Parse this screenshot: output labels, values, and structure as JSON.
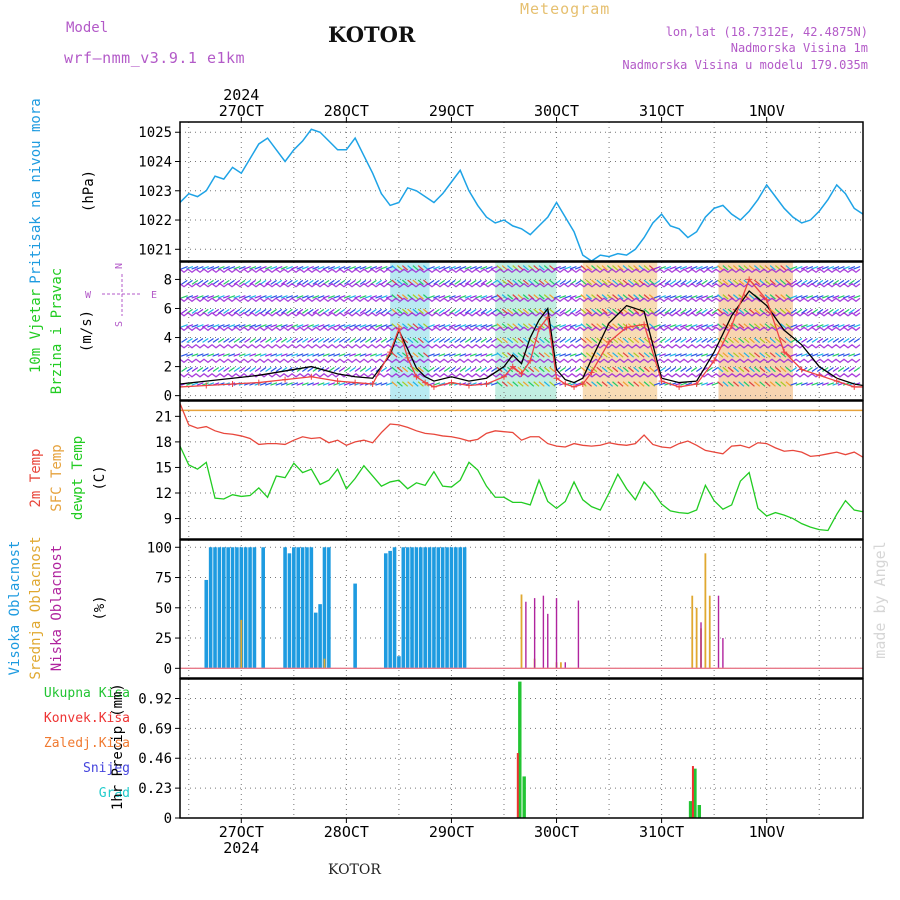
{
  "header": {
    "model_label": "Model",
    "model_name": "wrf–nmm_v3.9.1  e1km",
    "station": "KOTOR",
    "product": "Meteogram",
    "coords": "lon,lat (18.7312E, 42.4875N)",
    "elevation": "Nadmorska Visina 1m",
    "model_elevation": "Nadmorska Visina u modelu 179.035m",
    "year": "2024",
    "footer_station": "KOTOR",
    "watermark": "made by Angel"
  },
  "colors": {
    "pressure": "#1ea3e6",
    "temp2m": "#e8473c",
    "sfc_temp": "#e6a23c",
    "dewpt": "#22cc22",
    "high_cloud": "#1e9be0",
    "mid_cloud": "#e0a830",
    "low_cloud": "#b0249e",
    "total_precip": "#22c433",
    "conv_precip": "#ee3333",
    "frozen": "#f07a30",
    "snow": "#4444dd",
    "graupel": "#22cccc",
    "wind_speed": "#000000",
    "wind_gust": "#ee4444",
    "isotach": "#9b1fd6",
    "axis_title": "#1e9be0",
    "header_purple": "#b35ac8",
    "header_gold": "#e6c070"
  },
  "chart_data": {
    "type": "line",
    "x_axis": {
      "dates": [
        "27OCT",
        "28OCT",
        "29OCT",
        "30OCT",
        "31OCT",
        "1NOV"
      ],
      "year": "2024",
      "range_hours": [
        -14,
        142
      ]
    },
    "panels": [
      {
        "id": "pressure",
        "ylabel": "Pritisak na nivou mora",
        "unit": "(hPa)",
        "yticks": [
          1021,
          1022,
          1023,
          1024,
          1025
        ],
        "ylim": [
          1020.6,
          1025.35
        ],
        "series": [
          {
            "name": "pressure",
            "x": [
              -14,
              -12,
              -10,
              -8,
              -6,
              -4,
              -2,
              0,
              2,
              4,
              6,
              8,
              10,
              12,
              14,
              16,
              18,
              20,
              22,
              24,
              26,
              28,
              30,
              32,
              34,
              36,
              38,
              40,
              42,
              44,
              46,
              48,
              50,
              52,
              54,
              56,
              58,
              60,
              62,
              64,
              66,
              68,
              70,
              72,
              74,
              76,
              78,
              80,
              82,
              84,
              86,
              88,
              90,
              92,
              94,
              96,
              98,
              100,
              102,
              104,
              106,
              108,
              110,
              112,
              114,
              116,
              118,
              120,
              122,
              124,
              126,
              128,
              130,
              132,
              134,
              136,
              138,
              140,
              142
            ],
            "y": [
              1022.6,
              1022.9,
              1022.8,
              1023.0,
              1023.5,
              1023.4,
              1023.8,
              1023.6,
              1024.1,
              1024.6,
              1024.8,
              1024.4,
              1024.0,
              1024.4,
              1024.7,
              1025.1,
              1025.0,
              1024.7,
              1024.4,
              1024.4,
              1024.8,
              1024.2,
              1023.6,
              1022.9,
              1022.5,
              1022.6,
              1023.1,
              1023.0,
              1022.8,
              1022.6,
              1022.9,
              1023.3,
              1023.7,
              1023.0,
              1022.5,
              1022.1,
              1021.9,
              1022.0,
              1021.8,
              1021.7,
              1021.5,
              1021.8,
              1022.1,
              1022.6,
              1022.1,
              1021.6,
              1020.8,
              1020.6,
              1020.8,
              1020.75,
              1020.85,
              1020.8,
              1021.0,
              1021.4,
              1021.9,
              1022.2,
              1021.8,
              1021.7,
              1021.4,
              1021.6,
              1022.1,
              1022.4,
              1022.5,
              1022.2,
              1022.0,
              1022.3,
              1022.7,
              1023.2,
              1022.8,
              1022.4,
              1022.1,
              1021.9,
              1022.0,
              1022.3,
              1022.7,
              1023.2,
              1022.9,
              1022.4,
              1022.2
            ]
          }
        ]
      },
      {
        "id": "wind",
        "ylabel": "10m Vjetar Brzina i Pravac",
        "unit": "(m/s)",
        "compass": [
          "N",
          "W",
          "E",
          "S"
        ],
        "yticks": [
          0,
          2,
          4,
          6,
          8
        ],
        "ylim": [
          -0.3,
          9.2
        ],
        "isotach_levels": [
          1.4,
          2.4,
          3.4,
          4.6,
          5.6,
          6.6,
          7.6,
          8.6
        ],
        "series": [
          {
            "name": "wind_speed",
            "x": [
              -14,
              -8,
              -2,
              4,
              10,
              16,
              22,
              26,
              30,
              34,
              36,
              38,
              40,
              42,
              44,
              48,
              52,
              56,
              60,
              62,
              64,
              66,
              68,
              70,
              72,
              74,
              76,
              78,
              80,
              84,
              88,
              92,
              96,
              100,
              104,
              108,
              112,
              116,
              120,
              124,
              128,
              132,
              136,
              140,
              142
            ],
            "y": [
              0.8,
              1.0,
              1.2,
              1.4,
              1.7,
              2.0,
              1.5,
              1.3,
              1.2,
              2.8,
              4.5,
              3.2,
              1.9,
              1.3,
              1.0,
              1.3,
              1.0,
              1.2,
              2.0,
              2.8,
              2.2,
              4.0,
              5.2,
              6.0,
              1.8,
              1.1,
              0.9,
              1.2,
              2.5,
              5.0,
              6.2,
              5.8,
              1.2,
              0.9,
              1.0,
              3.0,
              5.5,
              7.2,
              6.2,
              4.5,
              3.5,
              2.0,
              1.2,
              0.8,
              0.7
            ]
          },
          {
            "name": "wind_gust",
            "x": [
              -14,
              -8,
              -2,
              4,
              10,
              16,
              22,
              26,
              30,
              34,
              36,
              38,
              40,
              42,
              44,
              48,
              52,
              56,
              60,
              62,
              64,
              66,
              68,
              70,
              72,
              74,
              76,
              78,
              80,
              84,
              88,
              92,
              96,
              100,
              104,
              108,
              112,
              116,
              120,
              124,
              128,
              132,
              136,
              140,
              142
            ],
            "y": [
              0.6,
              0.7,
              0.8,
              0.9,
              1.1,
              1.3,
              1.0,
              0.9,
              0.8,
              3.0,
              4.6,
              2.6,
              1.3,
              0.9,
              0.6,
              0.9,
              0.7,
              0.8,
              1.3,
              2.0,
              1.5,
              2.4,
              4.6,
              5.4,
              1.2,
              0.8,
              0.6,
              0.8,
              1.6,
              3.7,
              4.7,
              4.9,
              1.0,
              0.6,
              0.8,
              2.4,
              4.8,
              8.0,
              6.6,
              3.0,
              1.8,
              1.4,
              1.0,
              0.6,
              0.6
            ]
          }
        ]
      },
      {
        "id": "temperature",
        "ylabel": [
          "2m Temp",
          "SFC Temp",
          "dewpt Temp"
        ],
        "unit": "(C)",
        "yticks": [
          9,
          12,
          15,
          18,
          21
        ],
        "ylim": [
          6.6,
          22.8
        ],
        "series": [
          {
            "name": "temp2m",
            "x": [
              -14,
              -12,
              -10,
              -8,
              -6,
              -4,
              -2,
              0,
              2,
              4,
              6,
              8,
              10,
              12,
              14,
              16,
              18,
              20,
              22,
              24,
              26,
              28,
              30,
              32,
              34,
              36,
              38,
              40,
              42,
              44,
              46,
              48,
              50,
              52,
              54,
              56,
              58,
              60,
              62,
              64,
              66,
              68,
              70,
              72,
              74,
              76,
              78,
              80,
              82,
              84,
              86,
              88,
              90,
              92,
              94,
              96,
              98,
              100,
              102,
              104,
              106,
              108,
              110,
              112,
              114,
              116,
              118,
              120,
              122,
              124,
              126,
              128,
              130,
              132,
              134,
              136,
              138,
              140,
              142
            ],
            "y": [
              22.5,
              20.0,
              19.6,
              19.8,
              19.3,
              19.0,
              18.9,
              18.7,
              18.4,
              17.7,
              17.8,
              17.8,
              17.7,
              18.2,
              18.6,
              18.4,
              18.5,
              17.9,
              18.2,
              17.6,
              18.0,
              18.2,
              17.9,
              19.1,
              20.1,
              20.0,
              19.7,
              19.3,
              19.0,
              18.9,
              18.7,
              18.6,
              18.4,
              18.1,
              18.3,
              19.0,
              19.3,
              19.2,
              19.1,
              18.2,
              18.6,
              18.6,
              17.8,
              17.5,
              17.4,
              17.8,
              17.6,
              17.5,
              17.6,
              17.9,
              17.7,
              17.6,
              17.8,
              18.8,
              17.7,
              17.4,
              17.3,
              17.8,
              18.1,
              17.6,
              17.0,
              16.8,
              16.6,
              17.5,
              17.6,
              17.3,
              17.9,
              17.8,
              17.3,
              16.9,
              17.0,
              16.8,
              16.3,
              16.4,
              16.6,
              16.8,
              16.5,
              16.8,
              16.2
            ]
          },
          {
            "name": "sfc_temp",
            "x": [
              -14,
              142
            ],
            "y": [
              21.7,
              21.7
            ]
          },
          {
            "name": "dewpt",
            "x": [
              -14,
              -12,
              -10,
              -8,
              -6,
              -4,
              -2,
              0,
              2,
              4,
              6,
              8,
              10,
              12,
              14,
              16,
              18,
              20,
              22,
              24,
              26,
              28,
              30,
              32,
              34,
              36,
              38,
              40,
              42,
              44,
              46,
              48,
              50,
              52,
              54,
              56,
              58,
              60,
              62,
              64,
              66,
              68,
              70,
              72,
              74,
              76,
              78,
              80,
              82,
              84,
              86,
              88,
              90,
              92,
              94,
              96,
              98,
              100,
              102,
              104,
              106,
              108,
              110,
              112,
              114,
              116,
              118,
              120,
              122,
              124,
              126,
              128,
              130,
              132,
              134,
              136,
              138,
              140,
              142
            ],
            "y": [
              17.5,
              15.3,
              14.8,
              15.6,
              11.4,
              11.3,
              11.8,
              11.6,
              11.7,
              12.6,
              11.5,
              14.0,
              13.8,
              15.5,
              14.4,
              14.8,
              13.0,
              13.5,
              14.8,
              12.5,
              13.7,
              15.2,
              14.0,
              12.8,
              13.3,
              13.5,
              12.5,
              13.2,
              12.9,
              14.5,
              12.8,
              12.7,
              13.5,
              15.6,
              14.7,
              12.8,
              11.5,
              11.5,
              10.9,
              10.9,
              10.6,
              13.5,
              11.0,
              10.2,
              11.0,
              13.3,
              11.2,
              10.4,
              10.0,
              12.0,
              14.2,
              12.5,
              11.2,
              13.3,
              12.2,
              10.7,
              9.9,
              9.7,
              9.6,
              10.0,
              12.9,
              11.1,
              10.1,
              10.6,
              13.4,
              14.4,
              10.2,
              9.3,
              9.7,
              9.4,
              9.0,
              8.4,
              8.0,
              7.7,
              7.6,
              9.5,
              11.1,
              10.0,
              9.8
            ]
          }
        ]
      },
      {
        "id": "clouds",
        "ylabel": [
          "Visoka Oblacnost",
          "Srednja Oblacnost",
          "Niska Oblacnost"
        ],
        "unit": "(%)",
        "yticks": [
          0,
          25,
          50,
          75,
          100
        ],
        "ylim": [
          -8,
          106
        ],
        "series": [
          {
            "name": "high_cloud",
            "x": [
              -8,
              -7,
              -6,
              -5,
              -4,
              -3,
              -2,
              -1,
              0,
              1,
              2,
              3,
              5,
              10,
              11,
              12,
              13,
              14,
              15,
              16,
              17,
              18,
              19,
              20,
              26,
              33,
              34,
              35,
              36,
              37,
              38,
              39,
              40,
              41,
              42,
              43,
              44,
              45,
              46,
              47,
              48,
              49,
              50,
              51
            ],
            "values": [
              73,
              100,
              100,
              100,
              100,
              100,
              100,
              100,
              100,
              100,
              100,
              100,
              100,
              100,
              95,
              100,
              100,
              100,
              100,
              100,
              46,
              53,
              100,
              100,
              70,
              95,
              97,
              100,
              10,
              100,
              100,
              100,
              100,
              100,
              100,
              100,
              100,
              100,
              100,
              100,
              100,
              100,
              100,
              100
            ]
          },
          {
            "name": "mid_cloud",
            "x": [
              0,
              19,
              64,
              67,
              72,
              73,
              103,
              104,
              105,
              106,
              107
            ],
            "values": [
              40,
              8,
              61,
              8,
              5,
              5,
              60,
              50,
              33,
              95,
              60
            ]
          },
          {
            "name": "low_cloud",
            "x": [
              65,
              67,
              69,
              70,
              72,
              74,
              77,
              105,
              109,
              110
            ],
            "values": [
              55,
              58,
              60,
              45,
              58,
              5,
              56,
              38,
              60,
              25
            ]
          }
        ]
      },
      {
        "id": "precip",
        "ylabel": "1hr Precip",
        "unit": "(mm)",
        "yticks": [
          0,
          0.23,
          0.46,
          0.69,
          0.92
        ],
        "ylim": [
          0,
          1.07
        ],
        "legend": [
          "Ukupna Kisa",
          "Konvek.Kisa",
          "Zaledj.Kisa",
          "Snijeg",
          "Grad"
        ],
        "series": [
          {
            "name": "total_precip",
            "x": [
              63.5,
              64.5,
              102.5,
              103.5,
              104.5
            ],
            "values": [
              1.05,
              0.32,
              0.13,
              0.38,
              0.1
            ]
          },
          {
            "name": "conv_precip",
            "x": [
              63.5,
              103.5
            ],
            "values": [
              0.5,
              0.4
            ]
          }
        ]
      }
    ]
  }
}
